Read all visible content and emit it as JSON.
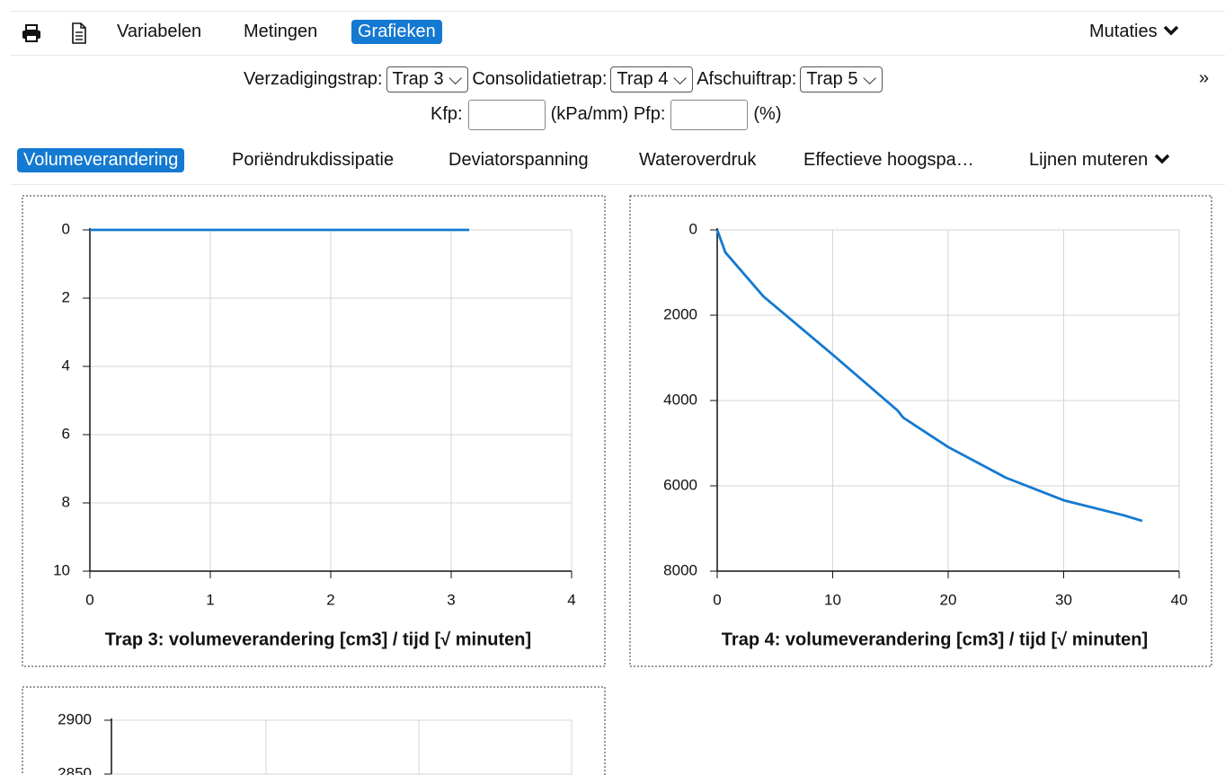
{
  "toolbar": {
    "menu": [
      "Variabelen",
      "Metingen",
      "Grafieken"
    ],
    "mutaties": "Mutaties"
  },
  "filters": [
    {
      "label": "Verzadigingstrap:",
      "value": "Trap 3"
    },
    {
      "label": "Consolidatietrap:",
      "value": "Trap 4"
    },
    {
      "label": "Afschuiftrap:",
      "value": "Trap 5"
    }
  ],
  "more": "»",
  "params": {
    "kfp_label": "Kfp:",
    "kfp_unit": "(kPa/mm)",
    "pfp_label": "Pfp:",
    "pfp_unit": "(%)"
  },
  "tabs": [
    "Volumeverandering",
    "Poriëndrukdissipatie",
    "Deviatorspanning",
    "Wateroverdruk",
    "Effectieve hoogspa…"
  ],
  "lines_menu": "Lijnen muteren",
  "chart_data": [
    {
      "type": "line",
      "title": "Trap 3: volumeverandering [cm3] / tijd [√ minuten]",
      "x": [
        0,
        0.1,
        1.5,
        3.15
      ],
      "values": [
        0,
        0,
        0,
        0
      ],
      "color": "#1479d1",
      "xlim": [
        0,
        4
      ],
      "xticks": [
        0,
        1,
        2,
        3,
        4
      ],
      "ylim": [
        10,
        0
      ],
      "yticks": [
        0,
        2,
        4,
        6,
        8,
        10
      ],
      "grid": true
    },
    {
      "type": "line",
      "title": "Trap 4: volumeverandering [cm3] / tijd [√ minuten]",
      "x": [
        0,
        0.7,
        4,
        10,
        15.6,
        16.1,
        20,
        25,
        30,
        35.2,
        36.8
      ],
      "values": [
        0,
        525,
        1560,
        2925,
        4230,
        4400,
        5090,
        5810,
        6340,
        6690,
        6820
      ],
      "color": "#1479d1",
      "xlim": [
        0,
        40
      ],
      "xticks": [
        0,
        10,
        20,
        30,
        40
      ],
      "ylim": [
        8000,
        0
      ],
      "yticks": [
        0,
        2000,
        4000,
        6000,
        8000
      ],
      "grid": true
    },
    {
      "type": "line",
      "ylim": [
        2850,
        2900
      ],
      "yticks": [
        2900,
        2850
      ],
      "grid": true
    }
  ]
}
